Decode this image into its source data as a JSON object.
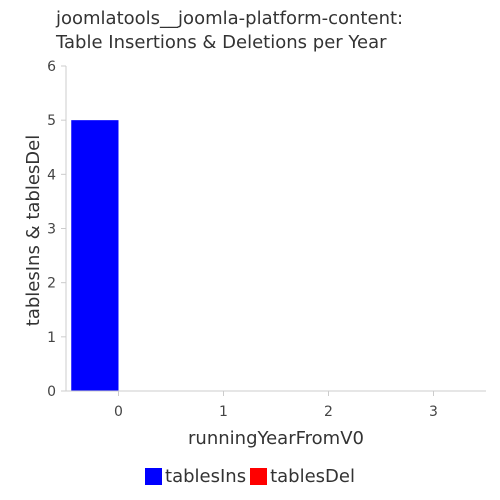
{
  "chart_data": {
    "type": "bar",
    "title_lines": [
      "joomlatools__joomla-platform-content:",
      "Table Insertions & Deletions per Year"
    ],
    "xlabel": "runningYearFromV0",
    "ylabel": "tablesIns & tablesDel",
    "x": [
      0,
      1,
      2,
      3
    ],
    "xlim": [
      -0.5,
      3.5
    ],
    "ylim": [
      0,
      6
    ],
    "yticks": [
      0,
      1,
      2,
      3,
      4,
      5,
      6
    ],
    "series": [
      {
        "name": "tablesIns",
        "color": "#0000ff",
        "values": [
          5,
          0,
          0,
          0
        ]
      },
      {
        "name": "tablesDel",
        "color": "#ff0000",
        "values": [
          0,
          0,
          0,
          0
        ]
      }
    ],
    "grid": false,
    "legend": "bottom-center"
  }
}
